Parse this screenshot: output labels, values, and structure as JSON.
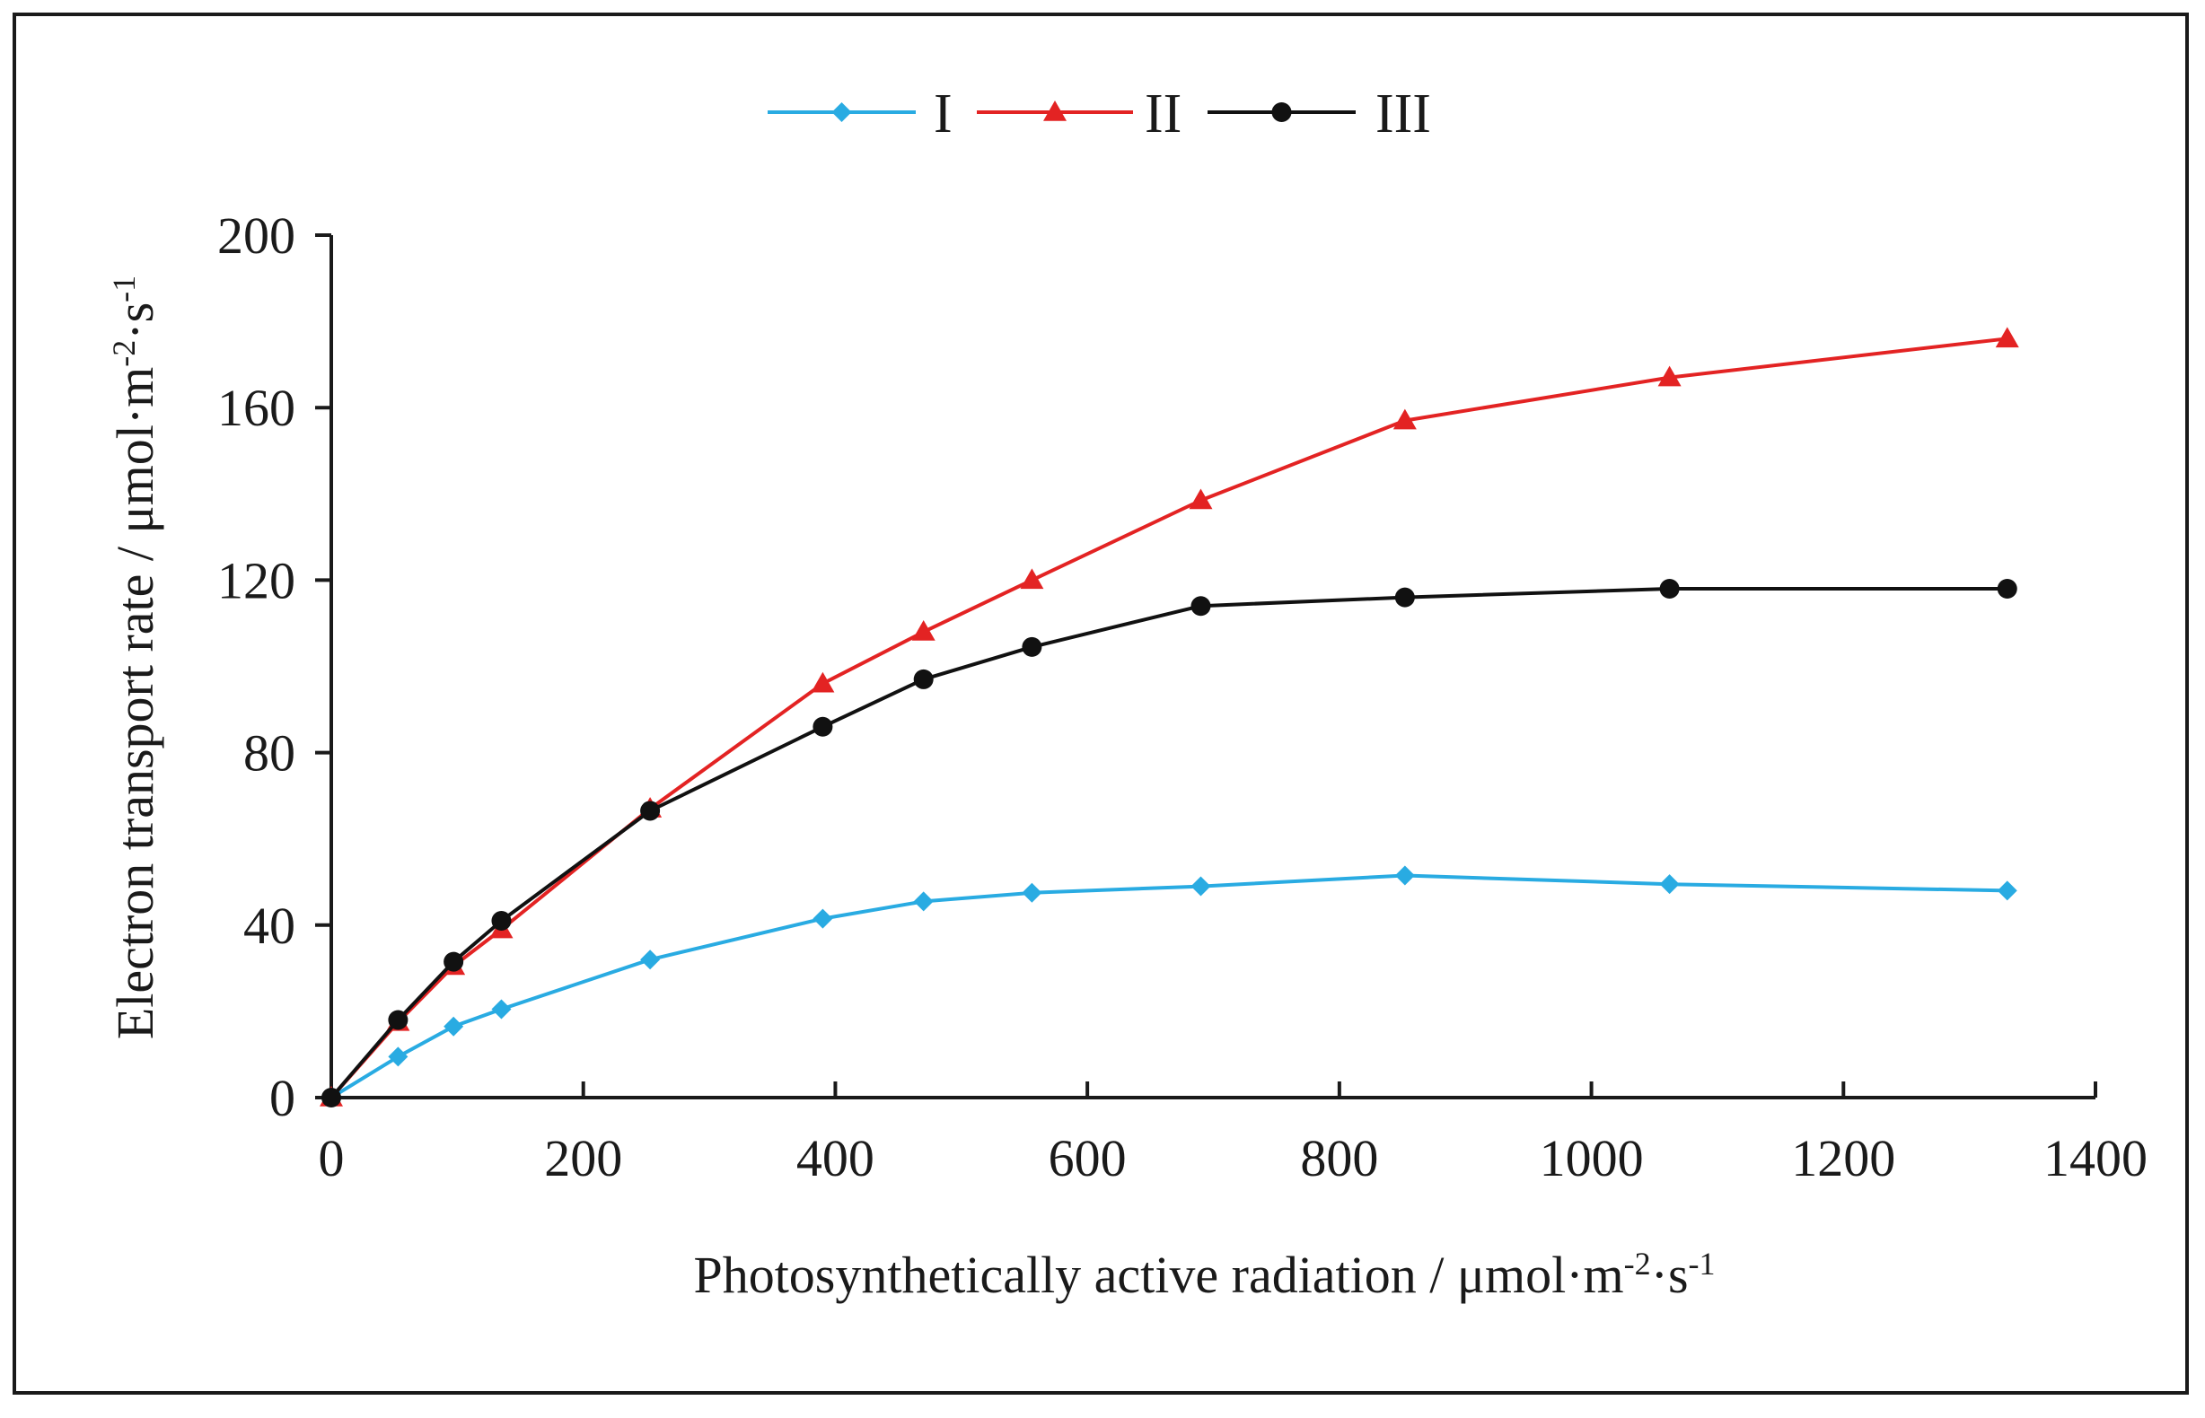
{
  "chart_data": {
    "type": "line",
    "title": "",
    "xlabel": {
      "prefix": "Photosynthetically active radiation / μmol·m",
      "sup1": "-2",
      "mid": "·s",
      "sup2": "-1"
    },
    "ylabel": {
      "prefix": "Electron transport rate / μmol·m",
      "sup1": "-2",
      "mid": "·s",
      "sup2": "-1"
    },
    "xlim": [
      0,
      1400
    ],
    "ylim": [
      0,
      200
    ],
    "xticks": [
      0,
      200,
      400,
      600,
      800,
      1000,
      1200,
      1400
    ],
    "yticks": [
      0,
      40,
      80,
      120,
      160,
      200
    ],
    "xtick_labels": [
      "0",
      "200",
      "400",
      "600",
      "800",
      "1000",
      "1200",
      "1400"
    ],
    "ytick_labels": [
      "0",
      "40",
      "80",
      "120",
      "160",
      "200"
    ],
    "grid": false,
    "legend_position": "top-center",
    "x": [
      0,
      53,
      97,
      135,
      253,
      390,
      470,
      556,
      690,
      852,
      1062,
      1330
    ],
    "series": [
      {
        "name": "I",
        "color": "#29abe2",
        "marker": "diamond",
        "values": [
          0,
          9.5,
          16.5,
          20.5,
          32,
          41.5,
          45.5,
          47.5,
          49,
          51.5,
          49.5,
          48
        ]
      },
      {
        "name": "II",
        "color": "#e32323",
        "marker": "triangle",
        "values": [
          0,
          17.5,
          30.5,
          39,
          67,
          96,
          108,
          120,
          138.5,
          157,
          167,
          176
        ]
      },
      {
        "name": "III",
        "color": "#111111",
        "marker": "circle",
        "values": [
          0,
          18,
          31.5,
          41,
          66.5,
          86,
          97,
          104.5,
          114,
          116,
          118,
          118
        ]
      }
    ]
  }
}
